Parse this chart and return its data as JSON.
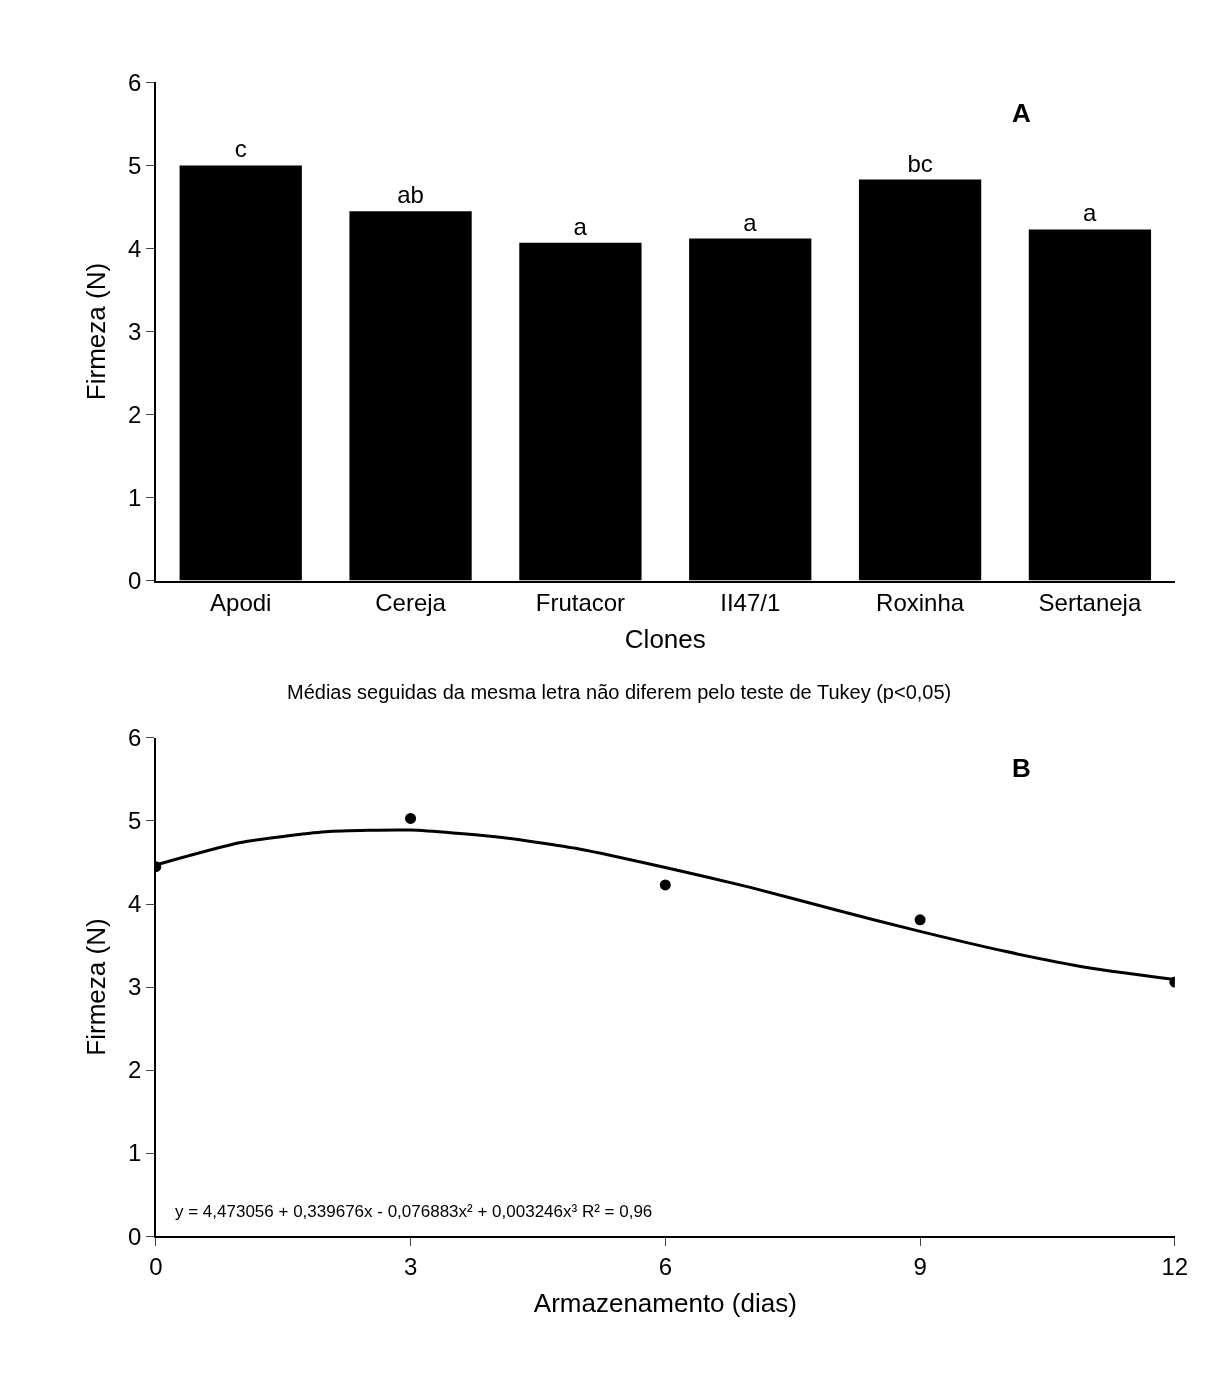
{
  "chart_data": [
    {
      "type": "bar",
      "title": "A",
      "xlabel": "Clones",
      "ylabel": "Firmeza (N)",
      "categories": [
        "Apodi",
        "Cereja",
        "Frutacor",
        "II47/1",
        "Roxinha",
        "Sertaneja"
      ],
      "values": [
        5.0,
        4.45,
        4.07,
        4.12,
        4.83,
        4.23
      ],
      "value_labels": [
        "c",
        "ab",
        "a",
        "a",
        "bc",
        "a"
      ],
      "color": "#000000",
      "ylim": [
        0,
        6
      ],
      "yticks": [
        0,
        1,
        2,
        3,
        4,
        5,
        6
      ],
      "grid": false,
      "legend": false,
      "annotations": [
        "Médias seguidas da mesma letra não diferem pelo teste de Tukey (p<0,05)"
      ]
    },
    {
      "type": "scatter",
      "title": "B",
      "xlabel": "Armazenamento (dias)",
      "ylabel": "Firmeza (N)",
      "series": [
        {
          "type": "scatter",
          "color": "#000000",
          "marker": "circle",
          "x": [
            0,
            3,
            6,
            9,
            12
          ],
          "values": [
            4.45,
            5.03,
            4.23,
            3.81,
            3.06
          ]
        },
        {
          "type": "line",
          "color": "#000000",
          "marker": "none",
          "line_style": "solid",
          "x": [
            0,
            1,
            2,
            3,
            4,
            5,
            6,
            7,
            8,
            9,
            10,
            11,
            12
          ],
          "values": [
            4.47,
            4.74,
            4.87,
            4.89,
            4.81,
            4.66,
            4.44,
            4.2,
            3.93,
            3.67,
            3.43,
            3.23,
            3.09
          ]
        }
      ],
      "xlim": [
        0,
        12
      ],
      "xticks": [
        0,
        3,
        6,
        9,
        12
      ],
      "ylim": [
        0,
        6
      ],
      "yticks": [
        0,
        1,
        2,
        3,
        4,
        5,
        6
      ],
      "grid": false,
      "legend": false,
      "annotations": [
        "y = 4,473056 + 0,339676x - 0,076883x² + 0,003246x³ R² = 0,96"
      ]
    }
  ]
}
